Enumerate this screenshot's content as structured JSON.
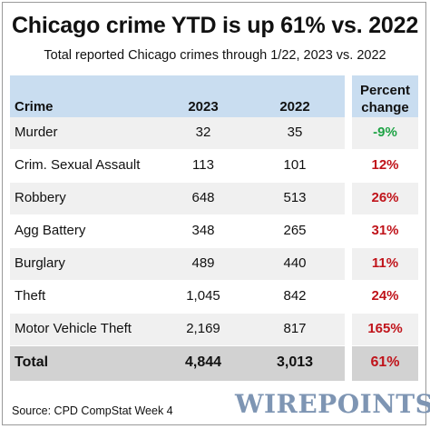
{
  "title": "Chicago crime YTD is up 61% vs. 2022",
  "subtitle": "Total reported Chicago crimes through 1/22, 2023 vs. 2022",
  "headers": {
    "crime": "Crime",
    "y2023": "2023",
    "y2022": "2022",
    "pct_line1": "Percent",
    "pct_line2": "change"
  },
  "colors": {
    "header_bg": "#c9ddf0",
    "increase": "#c0141b",
    "decrease": "#1fa346",
    "total_bg": "#d2d2d2"
  },
  "chart_data": {
    "type": "table",
    "title": "Chicago crime YTD is up 61% vs. 2022",
    "subtitle": "Total reported Chicago crimes through 1/22, 2023 vs. 2022",
    "columns": [
      "Crime",
      "2023",
      "2022",
      "Percent change"
    ],
    "rows": [
      {
        "crime": "Murder",
        "y2023": "32",
        "y2022": "35",
        "pct": "-9%",
        "direction": "down"
      },
      {
        "crime": "Crim. Sexual Assault",
        "y2023": "113",
        "y2022": "101",
        "pct": "12%",
        "direction": "up"
      },
      {
        "crime": "Robbery",
        "y2023": "648",
        "y2022": "513",
        "pct": "26%",
        "direction": "up"
      },
      {
        "crime": "Agg Battery",
        "y2023": "348",
        "y2022": "265",
        "pct": "31%",
        "direction": "up"
      },
      {
        "crime": "Burglary",
        "y2023": "489",
        "y2022": "440",
        "pct": "11%",
        "direction": "up"
      },
      {
        "crime": "Theft",
        "y2023": "1,045",
        "y2022": "842",
        "pct": "24%",
        "direction": "up"
      },
      {
        "crime": "Motor Vehicle Theft",
        "y2023": "2,169",
        "y2022": "817",
        "pct": "165%",
        "direction": "up"
      }
    ],
    "total": {
      "crime": "Total",
      "y2023": "4,844",
      "y2022": "3,013",
      "pct": "61%",
      "direction": "up"
    }
  },
  "source": "Source: CPD CompStat Week 4",
  "logo_text": "WIREPOINTS"
}
